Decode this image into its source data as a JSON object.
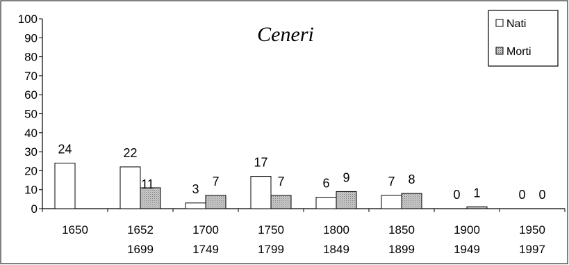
{
  "chart_data": {
    "type": "bar",
    "title": "Ceneri",
    "categories": [
      [
        "1650",
        ""
      ],
      [
        "1652",
        "1699"
      ],
      [
        "1700",
        "1749"
      ],
      [
        "1750",
        "1799"
      ],
      [
        "1800",
        "1849"
      ],
      [
        "1850",
        "1899"
      ],
      [
        "1900",
        "1949"
      ],
      [
        "1950",
        "1997"
      ]
    ],
    "series": [
      {
        "name": "Nati",
        "values": [
          24,
          22,
          3,
          17,
          6,
          7,
          0,
          0
        ],
        "color": "#ffffff"
      },
      {
        "name": "Morti",
        "values": [
          0,
          11,
          7,
          7,
          9,
          8,
          1,
          0
        ],
        "color": "#c0c0c0"
      }
    ],
    "data_labels": {
      "Nati": [
        "24",
        "22",
        "3",
        "17",
        "6",
        "7",
        "0",
        "0"
      ],
      "Morti": [
        "",
        "11",
        "7",
        "7",
        "9",
        "8",
        "1",
        "0"
      ]
    },
    "yticks": [
      0,
      10,
      20,
      30,
      40,
      50,
      60,
      70,
      80,
      90,
      100
    ],
    "ylim": [
      0,
      100
    ],
    "legend_position": "top-right",
    "grid": false
  }
}
